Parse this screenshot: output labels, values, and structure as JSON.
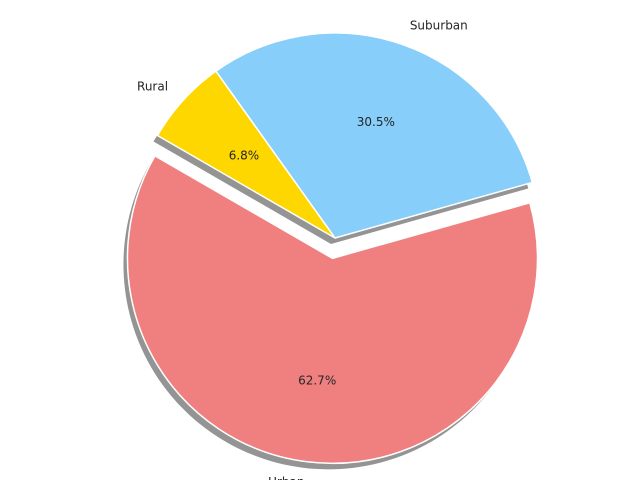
{
  "chart_data": {
    "type": "pie",
    "slices": [
      {
        "label": "Urban",
        "value": 62.7,
        "pct_label": "62.7%",
        "color": "#F08080",
        "explode": 0.1
      },
      {
        "label": "Suburban",
        "value": 30.5,
        "pct_label": "30.5%",
        "color": "#87CEFA",
        "explode": 0
      },
      {
        "label": "Rural",
        "value": 6.8,
        "pct_label": "6.8%",
        "color": "#FFD700",
        "explode": 0
      }
    ],
    "start_angle_deg": 150,
    "direction": "counterclockwise",
    "shadow": true,
    "title": ""
  }
}
